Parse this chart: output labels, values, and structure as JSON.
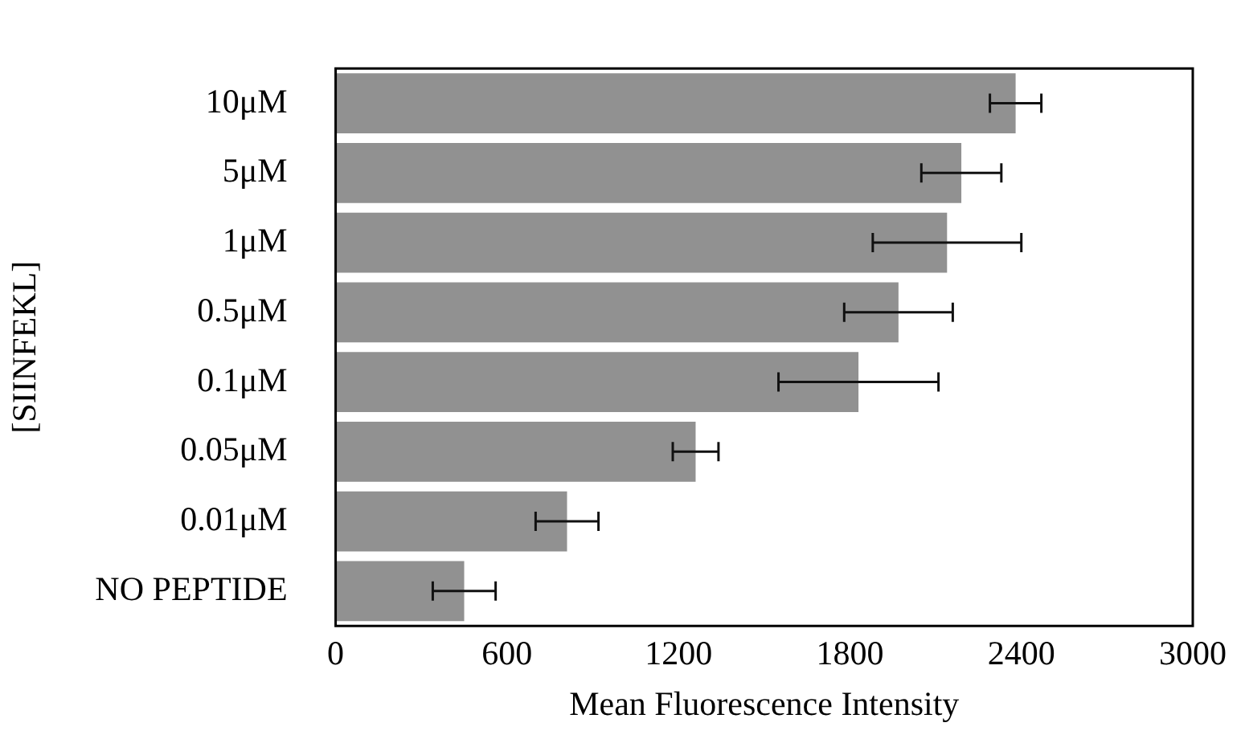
{
  "chart_data": {
    "type": "bar",
    "orientation": "horizontal",
    "xlabel": "Mean Fluorescence Intensity",
    "ylabel": "[SIINFEKL]",
    "categories": [
      "10μM",
      "5μM",
      "1μM",
      "0.5μM",
      "0.1μM",
      "0.05μM",
      "0.01μM",
      "NO PEPTIDE"
    ],
    "values": [
      2380,
      2190,
      2140,
      1970,
      1830,
      1260,
      810,
      450
    ],
    "errors": [
      90,
      140,
      260,
      190,
      280,
      80,
      110,
      110
    ],
    "color": "#919191",
    "xlim": [
      0,
      3000
    ],
    "xticks": [
      0,
      600,
      1200,
      1800,
      2400,
      3000
    ],
    "grid": false,
    "legend": false
  }
}
